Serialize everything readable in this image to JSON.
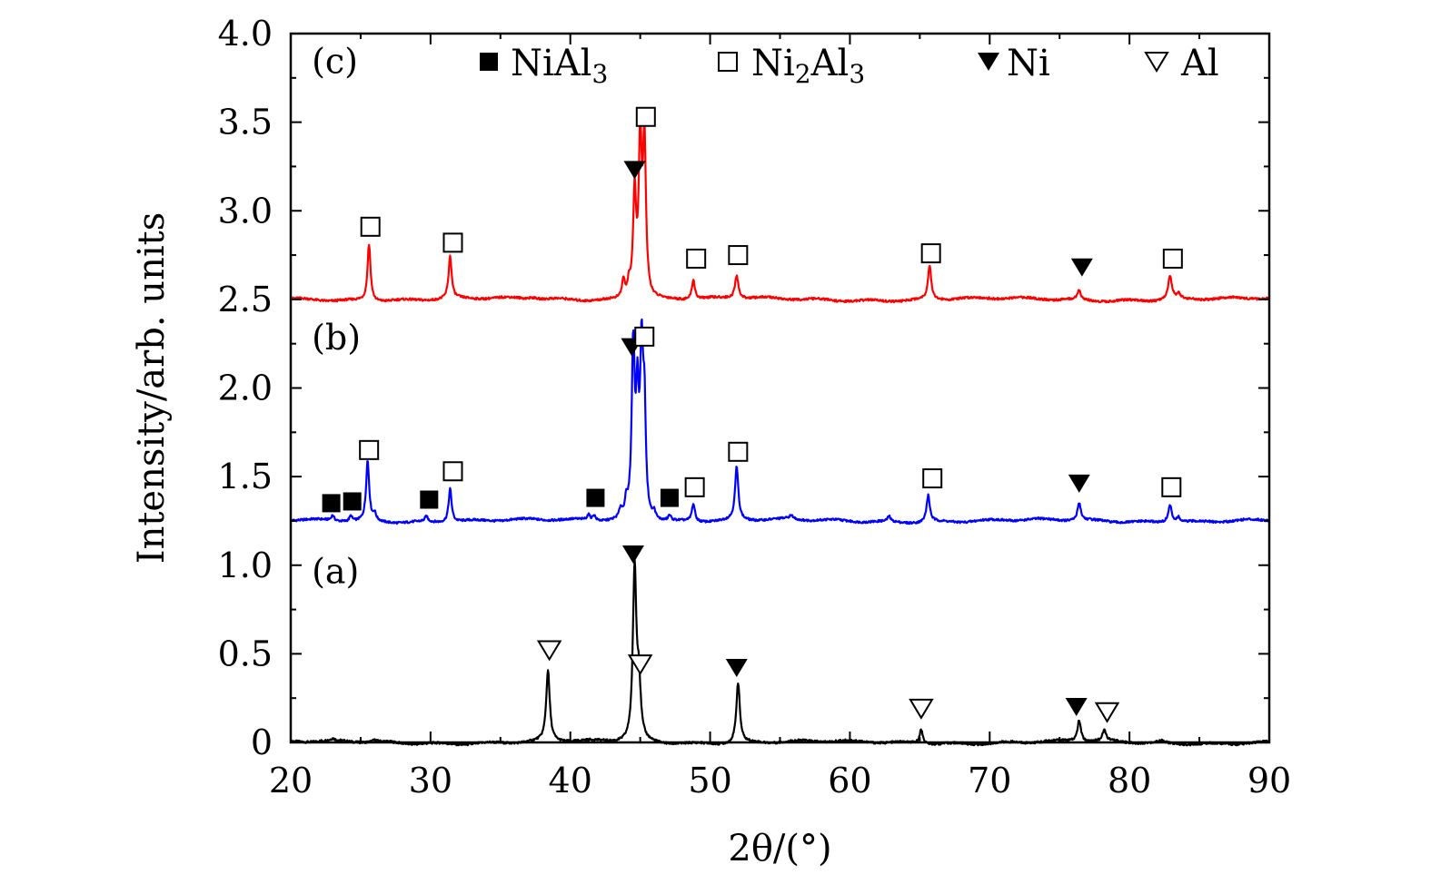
{
  "chart_data": {
    "type": "line",
    "title": "",
    "xlabel": "2θ/(°)",
    "ylabel": "Intensity/arb. units",
    "xlim": [
      20,
      90
    ],
    "ylim": [
      0,
      4.0
    ],
    "x_ticks": [
      "20",
      "30",
      "40",
      "50",
      "60",
      "70",
      "80",
      "90"
    ],
    "y_ticks": [
      "0",
      "0.5",
      "1.0",
      "1.5",
      "2.0",
      "2.5",
      "3.0",
      "3.5",
      "4.0"
    ],
    "legend": [
      {
        "symbol": "filled-square",
        "label_main": "NiAl",
        "label_sub": "3"
      },
      {
        "symbol": "open-square",
        "label_main": "Ni",
        "label_sub": "2",
        "label_mid": "Al",
        "label_sub2": "3"
      },
      {
        "symbol": "filled-triangle",
        "label_main": "Ni"
      },
      {
        "symbol": "open-triangle",
        "label_main": "Al"
      }
    ],
    "series": [
      {
        "name": "(a)",
        "color": "#000000",
        "baseline": 0.0,
        "peaks": [
          {
            "x": 23.0,
            "h": 0.01,
            "w": 0.15
          },
          {
            "x": 26.0,
            "h": 0.01,
            "w": 0.2
          },
          {
            "x": 38.4,
            "h": 0.4,
            "w": 0.15
          },
          {
            "x": 44.6,
            "h": 0.97,
            "w": 0.15
          },
          {
            "x": 44.9,
            "h": 0.3,
            "w": 0.15
          },
          {
            "x": 52.0,
            "h": 0.34,
            "w": 0.15
          },
          {
            "x": 65.1,
            "h": 0.08,
            "w": 0.15
          },
          {
            "x": 76.4,
            "h": 0.12,
            "w": 0.15
          },
          {
            "x": 78.2,
            "h": 0.06,
            "w": 0.15
          },
          {
            "x": 82.3,
            "h": 0.01,
            "w": 0.2
          }
        ],
        "markers": [
          {
            "x": 38.5,
            "y": 0.52,
            "symbol": "open-triangle"
          },
          {
            "x": 44.5,
            "y": 1.06,
            "symbol": "filled-triangle"
          },
          {
            "x": 45.0,
            "y": 0.44,
            "symbol": "open-triangle"
          },
          {
            "x": 51.9,
            "y": 0.42,
            "symbol": "filled-triangle"
          },
          {
            "x": 65.1,
            "y": 0.19,
            "symbol": "open-triangle"
          },
          {
            "x": 76.2,
            "y": 0.2,
            "symbol": "filled-triangle"
          },
          {
            "x": 78.4,
            "y": 0.17,
            "symbol": "open-triangle"
          }
        ],
        "panel_label": {
          "text": "(a)",
          "x": 21.5,
          "y": 0.97
        }
      },
      {
        "name": "(b)",
        "color": "#0000ff",
        "baseline": 1.25,
        "peaks": [
          {
            "x": 23.0,
            "h": 0.03,
            "w": 0.12
          },
          {
            "x": 24.3,
            "h": 0.03,
            "w": 0.12
          },
          {
            "x": 25.5,
            "h": 0.34,
            "w": 0.13
          },
          {
            "x": 26.0,
            "h": 0.04,
            "w": 0.12
          },
          {
            "x": 29.7,
            "h": 0.03,
            "w": 0.12
          },
          {
            "x": 31.4,
            "h": 0.19,
            "w": 0.13
          },
          {
            "x": 41.3,
            "h": 0.03,
            "w": 0.12
          },
          {
            "x": 41.7,
            "h": 0.03,
            "w": 0.12
          },
          {
            "x": 43.6,
            "h": 0.05,
            "w": 0.12
          },
          {
            "x": 44.0,
            "h": 0.08,
            "w": 0.12
          },
          {
            "x": 44.5,
            "h": 0.95,
            "w": 0.13
          },
          {
            "x": 44.8,
            "h": 0.6,
            "w": 0.12
          },
          {
            "x": 45.1,
            "h": 0.88,
            "w": 0.13
          },
          {
            "x": 45.3,
            "h": 0.55,
            "w": 0.12
          },
          {
            "x": 46.0,
            "h": 0.04,
            "w": 0.12
          },
          {
            "x": 47.1,
            "h": 0.03,
            "w": 0.12
          },
          {
            "x": 48.8,
            "h": 0.1,
            "w": 0.13
          },
          {
            "x": 51.9,
            "h": 0.3,
            "w": 0.14
          },
          {
            "x": 55.8,
            "h": 0.02,
            "w": 0.2
          },
          {
            "x": 62.8,
            "h": 0.03,
            "w": 0.12
          },
          {
            "x": 65.6,
            "h": 0.15,
            "w": 0.14
          },
          {
            "x": 76.4,
            "h": 0.1,
            "w": 0.14
          },
          {
            "x": 82.9,
            "h": 0.1,
            "w": 0.16
          },
          {
            "x": 83.5,
            "h": 0.03,
            "w": 0.12
          }
        ],
        "markers": [
          {
            "x": 22.9,
            "y": 1.35,
            "symbol": "filled-square"
          },
          {
            "x": 24.4,
            "y": 1.36,
            "symbol": "filled-square"
          },
          {
            "x": 25.6,
            "y": 1.65,
            "symbol": "open-square"
          },
          {
            "x": 29.9,
            "y": 1.37,
            "symbol": "filled-square"
          },
          {
            "x": 31.6,
            "y": 1.53,
            "symbol": "open-square"
          },
          {
            "x": 41.8,
            "y": 1.38,
            "symbol": "filled-square"
          },
          {
            "x": 44.4,
            "y": 2.23,
            "symbol": "filled-triangle"
          },
          {
            "x": 45.3,
            "y": 2.29,
            "symbol": "open-square"
          },
          {
            "x": 47.1,
            "y": 1.38,
            "symbol": "filled-square"
          },
          {
            "x": 48.9,
            "y": 1.44,
            "symbol": "open-square"
          },
          {
            "x": 52.0,
            "y": 1.64,
            "symbol": "open-square"
          },
          {
            "x": 65.9,
            "y": 1.49,
            "symbol": "open-square"
          },
          {
            "x": 76.4,
            "y": 1.46,
            "symbol": "filled-triangle"
          },
          {
            "x": 83.0,
            "y": 1.44,
            "symbol": "open-square"
          }
        ],
        "panel_label": {
          "text": "(b)",
          "x": 21.5,
          "y": 2.29
        }
      },
      {
        "name": "(c)",
        "color": "#ff0000",
        "baseline": 2.5,
        "peaks": [
          {
            "x": 25.6,
            "h": 0.32,
            "w": 0.13
          },
          {
            "x": 31.4,
            "h": 0.24,
            "w": 0.13
          },
          {
            "x": 37.3,
            "h": 0.01,
            "w": 0.3
          },
          {
            "x": 43.8,
            "h": 0.1,
            "w": 0.12
          },
          {
            "x": 44.2,
            "h": 0.08,
            "w": 0.12
          },
          {
            "x": 44.6,
            "h": 0.58,
            "w": 0.13
          },
          {
            "x": 45.0,
            "h": 0.85,
            "w": 0.13
          },
          {
            "x": 45.3,
            "h": 0.86,
            "w": 0.13
          },
          {
            "x": 48.8,
            "h": 0.11,
            "w": 0.13
          },
          {
            "x": 51.9,
            "h": 0.13,
            "w": 0.15
          },
          {
            "x": 65.7,
            "h": 0.19,
            "w": 0.14
          },
          {
            "x": 76.4,
            "h": 0.05,
            "w": 0.14
          },
          {
            "x": 82.9,
            "h": 0.13,
            "w": 0.17
          },
          {
            "x": 83.5,
            "h": 0.03,
            "w": 0.14
          }
        ],
        "markers": [
          {
            "x": 25.7,
            "y": 2.91,
            "symbol": "open-square"
          },
          {
            "x": 31.6,
            "y": 2.82,
            "symbol": "open-square"
          },
          {
            "x": 44.6,
            "y": 3.23,
            "symbol": "filled-triangle"
          },
          {
            "x": 45.4,
            "y": 3.53,
            "symbol": "open-square"
          },
          {
            "x": 49.0,
            "y": 2.73,
            "symbol": "open-square"
          },
          {
            "x": 52.0,
            "y": 2.75,
            "symbol": "open-square"
          },
          {
            "x": 65.8,
            "y": 2.76,
            "symbol": "open-square"
          },
          {
            "x": 76.6,
            "y": 2.68,
            "symbol": "filled-triangle"
          },
          {
            "x": 83.1,
            "y": 2.73,
            "symbol": "open-square"
          }
        ],
        "panel_label": {
          "text": "(c)",
          "x": 21.5,
          "y": 3.85
        }
      }
    ]
  }
}
